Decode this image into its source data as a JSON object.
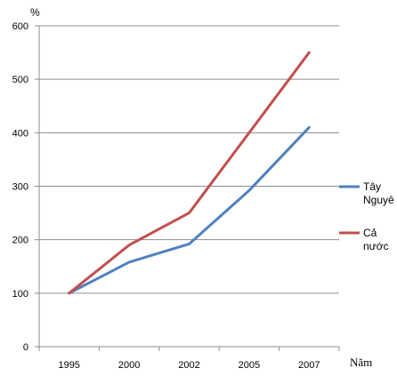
{
  "chart_data": {
    "type": "line",
    "categories": [
      "1995",
      "2000",
      "2002",
      "2005",
      "2007"
    ],
    "series": [
      {
        "name": "Tây Nguyê",
        "values": [
          100,
          158,
          192,
          292,
          410
        ],
        "color": "#4F81BD"
      },
      {
        "name": "Cả nước",
        "values": [
          100,
          190,
          250,
          400,
          550
        ],
        "color": "#C0504D"
      }
    ],
    "title": "",
    "xlabel": "Năm",
    "ylabel": "%",
    "ylim": [
      0,
      600
    ],
    "yticks": [
      "0",
      "100",
      "200",
      "300",
      "400",
      "500",
      "600"
    ],
    "grid": true,
    "legend": "right"
  }
}
